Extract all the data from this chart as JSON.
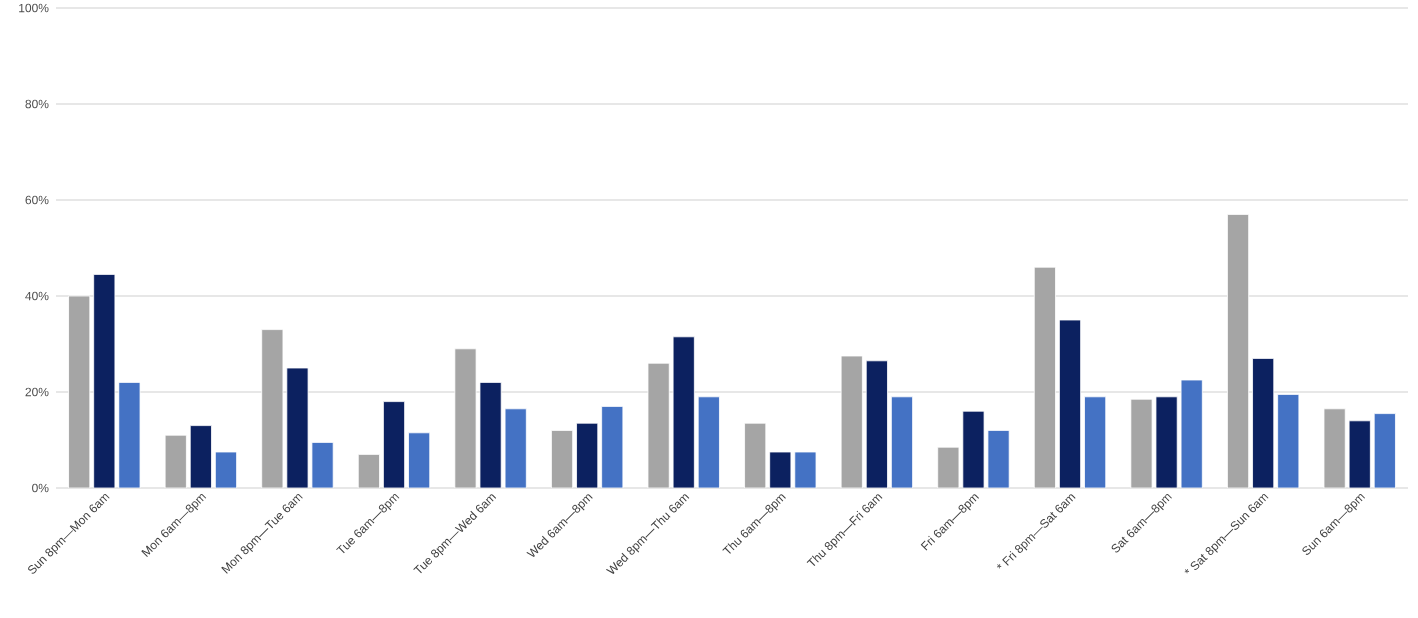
{
  "chart_data": {
    "type": "bar",
    "categories": [
      "Sun 8pm—Mon 6am",
      "Mon 6am—8pm",
      "Mon 8pm—Tue 6am",
      "Tue 6am—8pm",
      "Tue 8pm—Wed 6am",
      "Wed 6am—8pm",
      "Wed 8pm—Thu 6am",
      "Thu 6am—8pm",
      "Thu 8pm—Fri 6am",
      "Fri 6am—8pm",
      "* Fri 8pm—Sat 6am",
      "Sat 6am—8pm",
      "* Sat 8pm—Sun 6am",
      "Sun 6am—8pm"
    ],
    "series": [
      {
        "color": "#a5a5a5",
        "values": [
          40,
          11,
          33,
          7,
          29,
          12,
          26,
          13.5,
          27.5,
          8.5,
          46,
          18.5,
          57,
          16.5
        ]
      },
      {
        "color": "#0c2160",
        "values": [
          44.5,
          13,
          25,
          18,
          22,
          13.5,
          31.5,
          7.5,
          26.5,
          16,
          35,
          19,
          27,
          14
        ]
      },
      {
        "color": "#4472c4",
        "values": [
          22,
          7.5,
          9.5,
          11.5,
          16.5,
          17,
          19,
          7.5,
          19,
          12,
          19,
          22.5,
          19.5,
          15.5
        ]
      }
    ],
    "ylim": [
      0,
      100
    ],
    "yticks": [
      {
        "value": 0,
        "label": "0%"
      },
      {
        "value": 20,
        "label": "20%"
      },
      {
        "value": 40,
        "label": "40%"
      },
      {
        "value": 60,
        "label": "60%"
      },
      {
        "value": 80,
        "label": "80%"
      },
      {
        "value": 100,
        "label": "100%"
      }
    ],
    "grid": "y"
  }
}
